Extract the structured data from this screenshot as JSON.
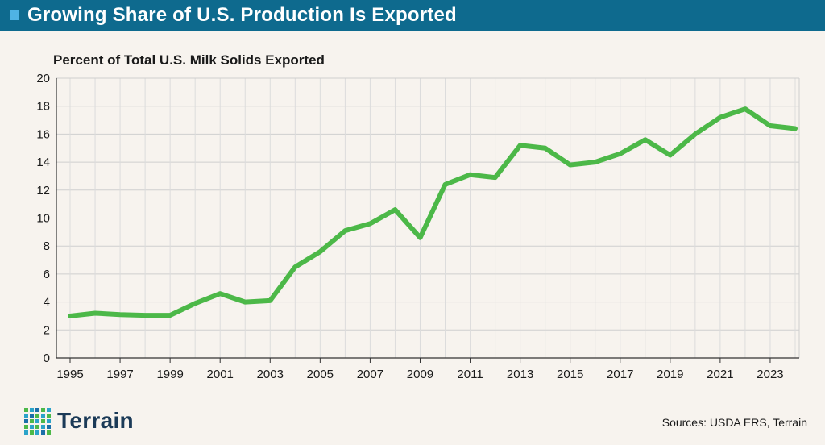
{
  "header": {
    "title": "Growing Share of U.S. Production Is Exported",
    "bullet_color": "#4fb3e4",
    "bar_color": "#0e6a8e"
  },
  "footer": {
    "brand": "Terrain",
    "source": "Sources: USDA ERS, Terrain"
  },
  "chart_data": {
    "type": "line",
    "title": "",
    "ylabel": "Percent of Total U.S. Milk Solids Exported",
    "xlabel": "",
    "x": [
      1995,
      1996,
      1997,
      1998,
      1999,
      2000,
      2001,
      2002,
      2003,
      2004,
      2005,
      2006,
      2007,
      2008,
      2009,
      2010,
      2011,
      2012,
      2013,
      2014,
      2015,
      2016,
      2017,
      2018,
      2019,
      2020,
      2021,
      2022,
      2023,
      2024
    ],
    "series": [
      {
        "name": "Percent of Total U.S. Milk Solids Exported",
        "color": "#4cb848",
        "values": [
          3.0,
          3.2,
          3.1,
          3.05,
          3.05,
          3.9,
          4.6,
          4.0,
          4.1,
          6.5,
          7.6,
          9.1,
          9.6,
          10.6,
          8.6,
          12.4,
          13.1,
          12.9,
          15.2,
          15.0,
          13.8,
          14.0,
          14.6,
          15.6,
          14.5,
          16.0,
          17.2,
          17.8,
          16.6,
          16.4
        ]
      }
    ],
    "xticks": [
      "1995",
      "1997",
      "1999",
      "2001",
      "2003",
      "2005",
      "2007",
      "2009",
      "2011",
      "2013",
      "2015",
      "2017",
      "2019",
      "2021",
      "2023"
    ],
    "yticks": [
      "0",
      "2",
      "4",
      "6",
      "8",
      "10",
      "12",
      "14",
      "16",
      "18",
      "20"
    ],
    "ylim": [
      0,
      20
    ],
    "grid": true,
    "gridlines": "horizontal and vertical"
  }
}
